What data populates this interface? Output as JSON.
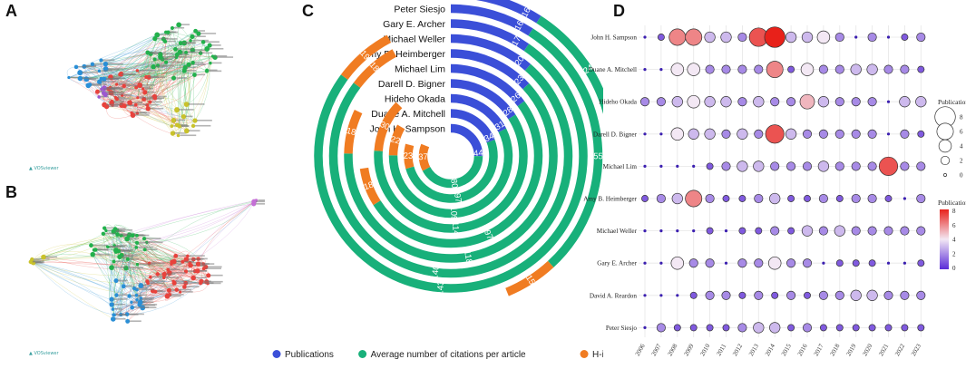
{
  "panels": {
    "a": "A",
    "b": "B",
    "c": "C",
    "d": "D"
  },
  "network": {
    "logo_text": "VOSviewer",
    "clusters_a": [
      {
        "name": "cluster-red",
        "color": "#e8423c"
      },
      {
        "name": "cluster-green",
        "color": "#22b14c"
      },
      {
        "name": "cluster-blue",
        "color": "#2a8fd6"
      },
      {
        "name": "cluster-yellow",
        "color": "#c9c22a"
      },
      {
        "name": "cluster-purple",
        "color": "#9b59d0"
      }
    ],
    "clusters_b": [
      {
        "name": "cluster-red",
        "color": "#e8423c"
      },
      {
        "name": "cluster-green",
        "color": "#22b14c"
      },
      {
        "name": "cluster-blue",
        "color": "#2a8fd6"
      },
      {
        "name": "cluster-yellow",
        "color": "#c9c22a"
      },
      {
        "name": "cluster-purple",
        "color": "#c46fd6"
      }
    ]
  },
  "chart_data": [
    {
      "type": "bar",
      "subtype": "radial",
      "title": "",
      "categories": [
        "John H. Sampson",
        "Duane A. Mitchell",
        "Hideho Okada",
        "Darell D. Bigner",
        "Michael Lim",
        "Amy B. Heimberger",
        "Michael Weller",
        "Gary E. Archer",
        "Peter Siesjo",
        "David A. Reardon"
      ],
      "series": [
        {
          "name": "Publications",
          "color": "#3b4fd8",
          "values": [
            44,
            34,
            31,
            28,
            26,
            23,
            20,
            17,
            16,
            16
          ]
        },
        {
          "name": "Average number of citations per article",
          "color": "#18b07a",
          "values": [
            80,
            97,
            109,
            114,
            97,
            118,
            140,
            143,
            55,
            24
          ]
        },
        {
          "name": "H-index",
          "color": "#f07c22",
          "values": [
            37,
            23,
            22,
            30,
            18,
            18,
            18,
            19,
            15,
            13
          ]
        }
      ],
      "legend": {
        "position": "bottom",
        "items": [
          "Publications",
          "Average number of citations per article",
          "H-index"
        ]
      }
    },
    {
      "type": "scatter",
      "subtype": "bubble",
      "x": [
        "2006",
        "2007",
        "2008",
        "2009",
        "2010",
        "2011",
        "2012",
        "2013",
        "2014",
        "2015",
        "2016",
        "2017",
        "2018",
        "2019",
        "2020",
        "2021",
        "2022",
        "2023"
      ],
      "y": [
        "John H. Sampson",
        "Duane A. Mitchell",
        "Hideho Okada",
        "Darell D. Bigner",
        "Michael Lim",
        "Amy B. Heimberger",
        "Michael Weller",
        "Gary E. Archer",
        "David A. Reardon",
        "Peter Siesjo"
      ],
      "values": [
        [
          0,
          1,
          6,
          6,
          3,
          3,
          2,
          7,
          8,
          3,
          3,
          4,
          2,
          0,
          2,
          0,
          1,
          2
        ],
        [
          0,
          0,
          4,
          4,
          2,
          2,
          2,
          2,
          6,
          1,
          4,
          2,
          2,
          3,
          3,
          2,
          2,
          1
        ],
        [
          2,
          2,
          3,
          4,
          3,
          3,
          2,
          3,
          2,
          2,
          5,
          3,
          2,
          2,
          2,
          0,
          3,
          3
        ],
        [
          0,
          0,
          4,
          3,
          3,
          2,
          3,
          2,
          7,
          3,
          2,
          2,
          2,
          2,
          2,
          0,
          2,
          1
        ],
        [
          0,
          0,
          0,
          0,
          1,
          2,
          3,
          3,
          2,
          2,
          2,
          3,
          2,
          2,
          2,
          7,
          2,
          2
        ],
        [
          1,
          2,
          3,
          6,
          2,
          1,
          1,
          2,
          3,
          1,
          1,
          2,
          1,
          2,
          2,
          1,
          0,
          2
        ],
        [
          0,
          0,
          0,
          0,
          1,
          0,
          1,
          1,
          2,
          1,
          3,
          2,
          3,
          2,
          2,
          2,
          2,
          2
        ],
        [
          0,
          0,
          4,
          2,
          2,
          0,
          2,
          2,
          4,
          2,
          2,
          0,
          1,
          1,
          1,
          0,
          0,
          1
        ],
        [
          0,
          0,
          0,
          1,
          2,
          2,
          1,
          2,
          1,
          2,
          1,
          2,
          2,
          3,
          3,
          2,
          2,
          2
        ],
        [
          0,
          2,
          1,
          1,
          1,
          1,
          2,
          3,
          3,
          1,
          2,
          1,
          1,
          1,
          1,
          1,
          1,
          1
        ]
      ],
      "legend_size": {
        "title": "Publications",
        "labels": [
          "8",
          "6",
          "4",
          "2",
          "0"
        ]
      },
      "legend_color": {
        "title": "Publications",
        "labels": [
          "8",
          "6",
          "4",
          "2",
          "0"
        ],
        "low": "#5a2bd8",
        "mid": "#f3e8f4",
        "high": "#e8211a"
      }
    }
  ]
}
